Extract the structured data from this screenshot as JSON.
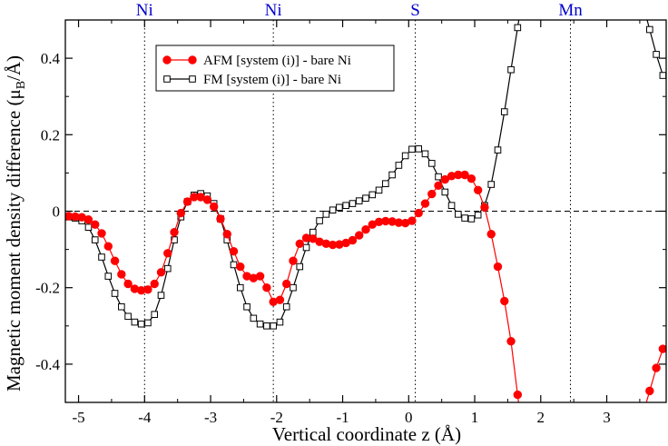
{
  "chart_data": {
    "type": "line",
    "title": "",
    "xlabel": "Vertical coordinate  z (Å)",
    "ylabel": "Magnetic moment density difference (μB/Å)",
    "ylabel_parts": {
      "main": "Magnetic moment density difference (μ",
      "sub": "B",
      "tail": "/Å)"
    },
    "xlim": [
      -5.2,
      3.9
    ],
    "ylim": [
      -0.5,
      0.5
    ],
    "x_ticks": [
      -5,
      -4,
      -3,
      -2,
      -1,
      0,
      1,
      2,
      3
    ],
    "x_tick_labels": [
      "-5",
      "-4",
      "-3",
      "-2",
      "-1",
      "0",
      "1",
      "2",
      "3"
    ],
    "y_ticks": [
      -0.4,
      -0.2,
      0,
      0.2,
      0.4
    ],
    "y_tick_labels": [
      "-0.4",
      "-0.2",
      "0",
      "0.2",
      "0.4"
    ],
    "zero_line": true,
    "atom_markers": [
      {
        "label": "Ni",
        "x": -4.0
      },
      {
        "label": "Ni",
        "x": -2.05
      },
      {
        "label": "S",
        "x": 0.1
      },
      {
        "label": "Mn",
        "x": 2.45
      }
    ],
    "legend_position": "top-left",
    "series": [
      {
        "name": "AFM [system (i)] - bare Ni",
        "color": "#ff0000",
        "marker": "filled-circle",
        "x": [
          -5.15,
          -5.05,
          -4.95,
          -4.85,
          -4.75,
          -4.65,
          -4.55,
          -4.45,
          -4.35,
          -4.25,
          -4.15,
          -4.05,
          -3.95,
          -3.85,
          -3.75,
          -3.65,
          -3.55,
          -3.45,
          -3.35,
          -3.25,
          -3.15,
          -3.05,
          -2.95,
          -2.85,
          -2.75,
          -2.65,
          -2.55,
          -2.45,
          -2.35,
          -2.25,
          -2.15,
          -2.05,
          -1.95,
          -1.85,
          -1.75,
          -1.65,
          -1.55,
          -1.45,
          -1.35,
          -1.25,
          -1.15,
          -1.05,
          -0.95,
          -0.85,
          -0.75,
          -0.65,
          -0.55,
          -0.45,
          -0.35,
          -0.25,
          -0.15,
          -0.05,
          0.05,
          0.15,
          0.25,
          0.35,
          0.45,
          0.55,
          0.65,
          0.75,
          0.85,
          0.95,
          1.05,
          1.15,
          1.25,
          1.35,
          1.45,
          1.55,
          1.65,
          3.65,
          3.75,
          3.85
        ],
        "y": [
          -0.013,
          -0.014,
          -0.016,
          -0.022,
          -0.035,
          -0.058,
          -0.092,
          -0.13,
          -0.165,
          -0.19,
          -0.203,
          -0.207,
          -0.205,
          -0.19,
          -0.16,
          -0.11,
          -0.055,
          -0.005,
          0.025,
          0.037,
          0.037,
          0.03,
          0.012,
          -0.02,
          -0.06,
          -0.105,
          -0.145,
          -0.17,
          -0.175,
          -0.17,
          -0.2,
          -0.237,
          -0.232,
          -0.19,
          -0.13,
          -0.085,
          -0.07,
          -0.072,
          -0.08,
          -0.085,
          -0.088,
          -0.087,
          -0.083,
          -0.076,
          -0.063,
          -0.048,
          -0.035,
          -0.028,
          -0.026,
          -0.027,
          -0.03,
          -0.031,
          -0.025,
          -0.005,
          0.02,
          0.045,
          0.067,
          0.083,
          0.092,
          0.095,
          0.095,
          0.085,
          0.055,
          0.01,
          -0.06,
          -0.145,
          -0.235,
          -0.34,
          -0.48,
          -0.47,
          -0.41,
          -0.36
        ]
      },
      {
        "name": "FM [system (i)] - bare Ni",
        "color": "#000000",
        "marker": "open-square",
        "x": [
          -5.15,
          -5.05,
          -4.95,
          -4.85,
          -4.75,
          -4.65,
          -4.55,
          -4.45,
          -4.35,
          -4.25,
          -4.15,
          -4.05,
          -3.95,
          -3.85,
          -3.75,
          -3.65,
          -3.55,
          -3.45,
          -3.35,
          -3.25,
          -3.15,
          -3.05,
          -2.95,
          -2.85,
          -2.75,
          -2.65,
          -2.55,
          -2.45,
          -2.35,
          -2.25,
          -2.15,
          -2.05,
          -1.95,
          -1.85,
          -1.75,
          -1.65,
          -1.55,
          -1.45,
          -1.35,
          -1.25,
          -1.15,
          -1.05,
          -0.95,
          -0.85,
          -0.75,
          -0.65,
          -0.55,
          -0.45,
          -0.35,
          -0.25,
          -0.15,
          -0.05,
          0.05,
          0.15,
          0.25,
          0.35,
          0.45,
          0.55,
          0.65,
          0.75,
          0.85,
          0.95,
          1.05,
          1.15,
          1.25,
          1.35,
          1.45,
          1.55,
          1.65,
          3.65,
          3.75,
          3.85
        ],
        "y": [
          -0.015,
          -0.018,
          -0.025,
          -0.042,
          -0.075,
          -0.12,
          -0.17,
          -0.215,
          -0.25,
          -0.275,
          -0.29,
          -0.295,
          -0.292,
          -0.27,
          -0.22,
          -0.15,
          -0.075,
          -0.015,
          0.025,
          0.042,
          0.046,
          0.04,
          0.02,
          -0.02,
          -0.075,
          -0.14,
          -0.2,
          -0.25,
          -0.28,
          -0.295,
          -0.3,
          -0.3,
          -0.29,
          -0.25,
          -0.2,
          -0.145,
          -0.095,
          -0.055,
          -0.025,
          -0.008,
          0.003,
          0.01,
          0.015,
          0.02,
          0.027,
          0.034,
          0.043,
          0.055,
          0.072,
          0.095,
          0.12,
          0.145,
          0.162,
          0.163,
          0.15,
          0.125,
          0.09,
          0.05,
          0.015,
          -0.008,
          -0.018,
          -0.02,
          -0.01,
          0.015,
          0.07,
          0.16,
          0.26,
          0.37,
          0.48,
          0.475,
          0.41,
          0.355
        ]
      }
    ]
  }
}
